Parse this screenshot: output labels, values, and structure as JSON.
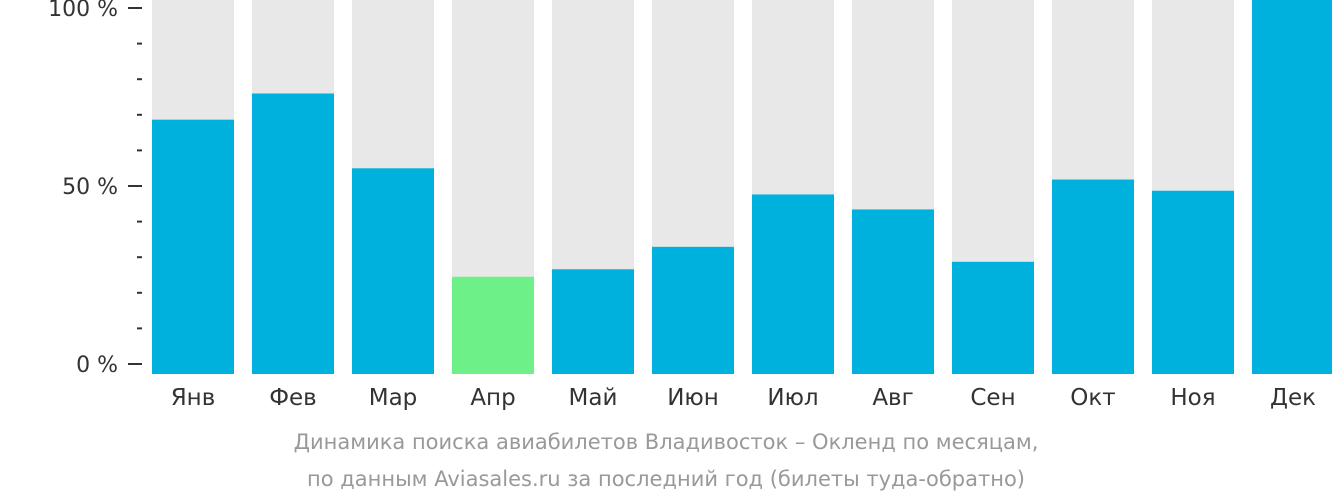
{
  "chart_data": {
    "type": "bar",
    "categories": [
      "Янв",
      "Фев",
      "Мар",
      "Апр",
      "Май",
      "Июн",
      "Июл",
      "Авг",
      "Сен",
      "Окт",
      "Ноя",
      "Дек"
    ],
    "values": [
      68,
      75,
      55,
      26,
      28,
      34,
      48,
      44,
      30,
      52,
      49,
      100
    ],
    "highlight_index": 3,
    "ylim": [
      0,
      100
    ],
    "yticks": [
      {
        "value": 0,
        "label": "0 %"
      },
      {
        "value": 50,
        "label": "50 %"
      },
      {
        "value": 100,
        "label": "100 %"
      }
    ],
    "minor_tick_step": 10,
    "colors": {
      "bar": "#00b1de",
      "highlight": "#6df087",
      "track": "#e8e8e8",
      "axis": "#333333",
      "label": "#333333"
    }
  },
  "caption": {
    "line1": "Динамика поиска авиабилетов Владивосток – Окленд по месяцам,",
    "line2": "по данным Aviasales.ru за последний год (билеты туда-обратно)"
  }
}
